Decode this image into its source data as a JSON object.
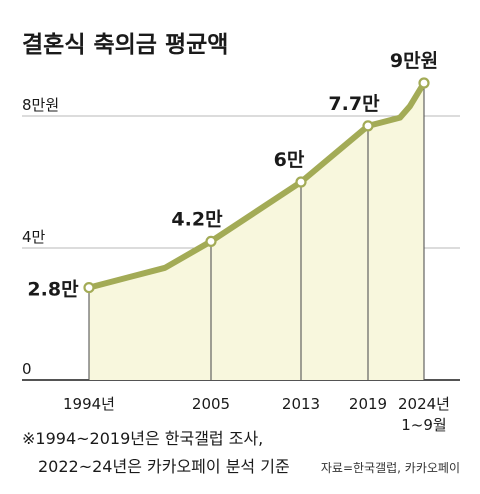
{
  "chart_data": {
    "type": "area",
    "title": "결혼식 축의금 평균액",
    "x_labels": [
      "1994년",
      "2005",
      "2013",
      "2019",
      "2024년"
    ],
    "x_sublabel": "1~9월",
    "y_ticks": [
      {
        "value": 0,
        "label": "0"
      },
      {
        "value": 4,
        "label": "4만"
      },
      {
        "value": 8,
        "label": "8만원"
      }
    ],
    "ylim": [
      0,
      9
    ],
    "series": [
      {
        "points": [
          {
            "x": 1994,
            "y": 2.8,
            "label": "2.8만",
            "marker": true
          },
          {
            "x": 1999,
            "y": 3.4,
            "marker": false
          },
          {
            "x": 2005,
            "y": 4.2,
            "label": "4.2만",
            "marker": true
          },
          {
            "x": 2013,
            "y": 6.0,
            "label": "6만",
            "marker": true
          },
          {
            "x": 2019,
            "y": 7.7,
            "label": "7.7만",
            "marker": true
          },
          {
            "x": 2022,
            "y": 7.95,
            "marker": false
          },
          {
            "x": 2023,
            "y": 8.3,
            "marker": false
          },
          {
            "x": 2024,
            "y": 9.0,
            "label": "9만원",
            "marker": true
          }
        ]
      }
    ],
    "colors": {
      "line": "#a3ab56",
      "fill": "#f8f7dd",
      "marker_fill": "#ffffff",
      "grid": "#b9b9b9",
      "axis": "#1a1a1a",
      "drop_line": "#555555",
      "text": "#1a1a1a",
      "source_text": "#333333"
    }
  },
  "notes": {
    "line1": "※1994~2019년은 한국갤럽 조사,",
    "line2": "2022~24년은 카카오페이 분석 기준",
    "source": "자료=한국갤럽, 카카오페이"
  }
}
